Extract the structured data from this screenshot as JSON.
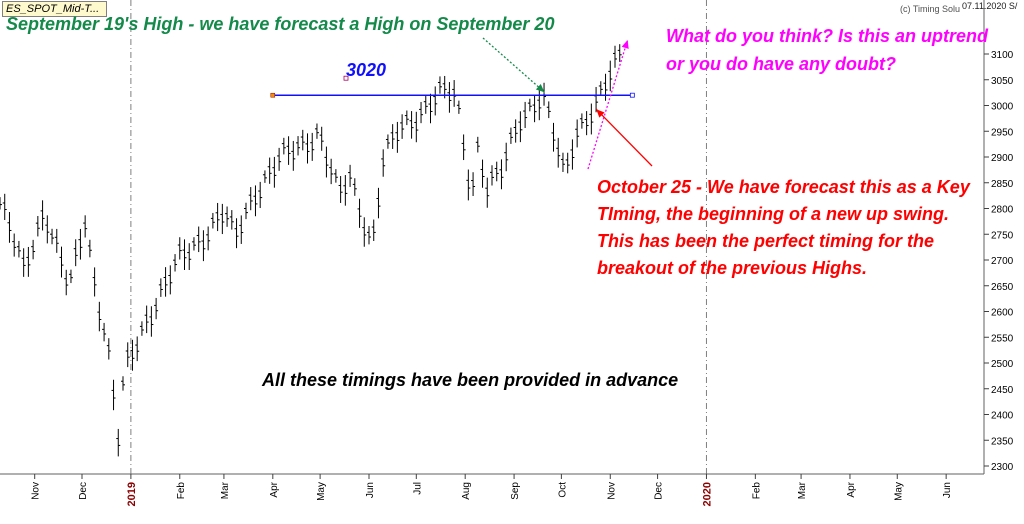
{
  "header": {
    "ticker": "ES_SPOT_Mid-T...",
    "credit": "(c) Timing Solu",
    "date": "07.11.2020 S/"
  },
  "annotations": {
    "green": "September 19's High - we have forecast a High on September 20",
    "magenta": "What do you think? Is this an uptrend or you do have any doubt?",
    "red": "October 25 - We have forecast this as a Key TIming, the beginning of a new up swing. This has been the perfect timing for the breakout of the previous Highs.",
    "black": "All these timings have been provided in advance",
    "level": "3020"
  },
  "colors": {
    "green": "#148a4a",
    "magenta": "#ff00ff",
    "red": "#ff0000",
    "blue": "#1010ff",
    "bars": "#000000",
    "divider": "#808080"
  },
  "chart_data": {
    "type": "line",
    "title": "",
    "y_axis_position": "right",
    "ylim": [
      2290,
      3125
    ],
    "yticks": [
      2300,
      2350,
      2400,
      2450,
      2500,
      2550,
      2600,
      2650,
      2700,
      2750,
      2800,
      2850,
      2900,
      2950,
      3000,
      3050,
      3100
    ],
    "x_range": [
      "2018-10-10",
      "2020-06-25"
    ],
    "xticks": [
      {
        "label": "Nov",
        "date": "2018-11-01"
      },
      {
        "label": "Dec",
        "date": "2018-12-01"
      },
      {
        "label": "2019",
        "date": "2019-01-01",
        "year": true
      },
      {
        "label": "Feb",
        "date": "2019-02-01"
      },
      {
        "label": "Mar",
        "date": "2019-03-01"
      },
      {
        "label": "Apr",
        "date": "2019-04-01"
      },
      {
        "label": "May",
        "date": "2019-05-01"
      },
      {
        "label": "Jun",
        "date": "2019-06-01"
      },
      {
        "label": "Jul",
        "date": "2019-07-01"
      },
      {
        "label": "Aug",
        "date": "2019-08-01"
      },
      {
        "label": "Sep",
        "date": "2019-09-01"
      },
      {
        "label": "Oct",
        "date": "2019-10-01"
      },
      {
        "label": "Nov",
        "date": "2019-11-01"
      },
      {
        "label": "Dec",
        "date": "2019-12-01"
      },
      {
        "label": "2020",
        "date": "2020-01-01",
        "year": true
      },
      {
        "label": "Feb",
        "date": "2020-02-01"
      },
      {
        "label": "Mar",
        "date": "2020-03-01"
      },
      {
        "label": "Apr",
        "date": "2020-04-01"
      },
      {
        "label": "May",
        "date": "2020-05-01"
      },
      {
        "label": "Jun",
        "date": "2020-06-01"
      }
    ],
    "price_path": [
      {
        "date": "2018-10-10",
        "value": 2810
      },
      {
        "date": "2018-10-25",
        "value": 2680
      },
      {
        "date": "2018-11-07",
        "value": 2800
      },
      {
        "date": "2018-11-23",
        "value": 2640
      },
      {
        "date": "2018-12-03",
        "value": 2780
      },
      {
        "date": "2018-12-10",
        "value": 2640
      },
      {
        "date": "2018-12-17",
        "value": 2540
      },
      {
        "date": "2018-12-24",
        "value": 2350
      },
      {
        "date": "2018-12-28",
        "value": 2480
      },
      {
        "date": "2019-01-10",
        "value": 2580
      },
      {
        "date": "2019-02-01",
        "value": 2700
      },
      {
        "date": "2019-03-01",
        "value": 2790
      },
      {
        "date": "2019-03-08",
        "value": 2740
      },
      {
        "date": "2019-03-20",
        "value": 2830
      },
      {
        "date": "2019-04-05",
        "value": 2890
      },
      {
        "date": "2019-04-30",
        "value": 2950
      },
      {
        "date": "2019-05-13",
        "value": 2820
      },
      {
        "date": "2019-05-20",
        "value": 2860
      },
      {
        "date": "2019-06-03",
        "value": 2730
      },
      {
        "date": "2019-06-10",
        "value": 2890
      },
      {
        "date": "2019-06-20",
        "value": 2950
      },
      {
        "date": "2019-07-15",
        "value": 3020
      },
      {
        "date": "2019-07-26",
        "value": 3020
      },
      {
        "date": "2019-08-05",
        "value": 2830
      },
      {
        "date": "2019-08-09",
        "value": 2920
      },
      {
        "date": "2019-08-15",
        "value": 2840
      },
      {
        "date": "2019-08-23",
        "value": 2860
      },
      {
        "date": "2019-09-05",
        "value": 2980
      },
      {
        "date": "2019-09-19",
        "value": 3020
      },
      {
        "date": "2019-10-03",
        "value": 2860
      },
      {
        "date": "2019-10-10",
        "value": 2950
      },
      {
        "date": "2019-10-25",
        "value": 3010
      },
      {
        "date": "2019-11-07",
        "value": 3095
      }
    ],
    "reference_line": {
      "value": 3020,
      "label": "3020",
      "from": "2019-04-01",
      "to": "2019-11-15"
    }
  }
}
